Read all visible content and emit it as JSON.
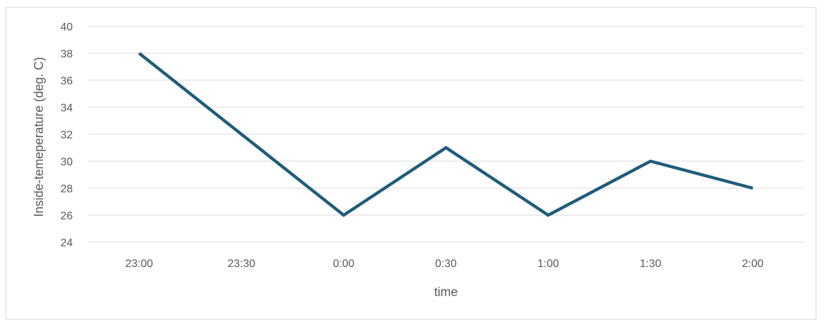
{
  "chart_data": {
    "type": "line",
    "title": "",
    "xlabel": "time",
    "ylabel": "Inside-temeperature (deg. C)",
    "categories": [
      "23:00",
      "23:30",
      "0:00",
      "0:30",
      "1:00",
      "1:30",
      "2:00"
    ],
    "series": [
      {
        "values": [
          38,
          32,
          26,
          31,
          26,
          30,
          28
        ],
        "color": "#1f5c7a"
      }
    ],
    "ylim": [
      24,
      40
    ],
    "yticks": [
      24,
      26,
      28,
      30,
      32,
      34,
      36,
      38,
      40
    ],
    "grid": true,
    "legend": "none"
  }
}
